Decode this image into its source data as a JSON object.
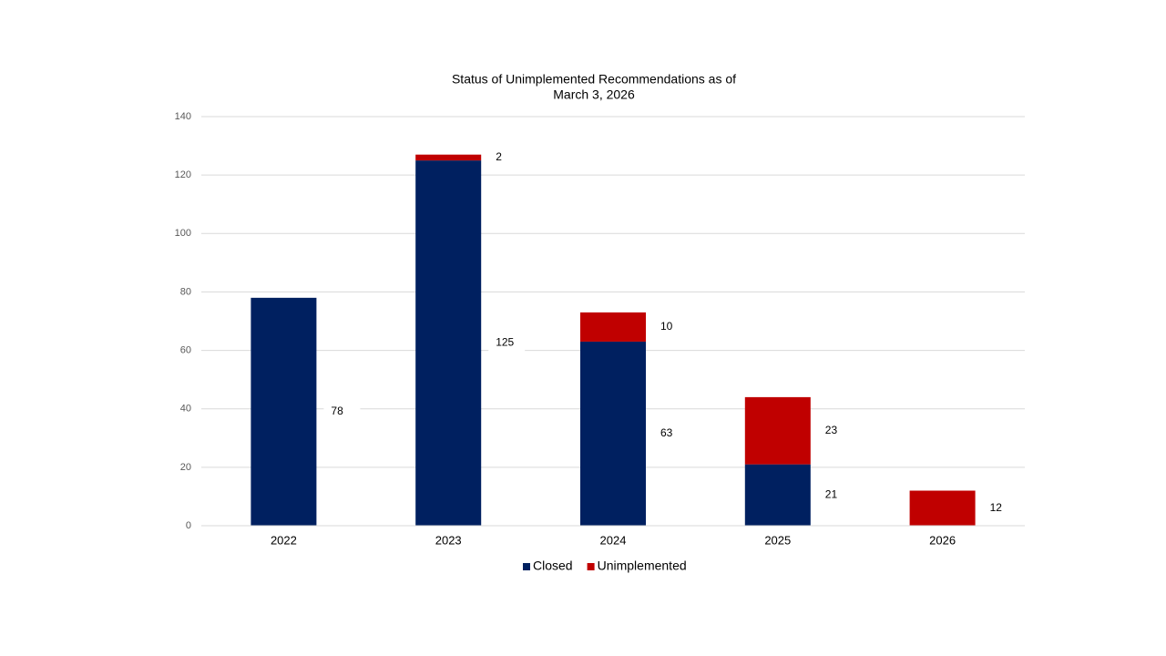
{
  "chart_data": {
    "type": "stacked-bar",
    "title": [
      "Status of Unimplemented Recommendations as of",
      "March 3, 2026"
    ],
    "categories": [
      "2022",
      "2023",
      "2024",
      "2025",
      "2026"
    ],
    "series": [
      {
        "name": "Closed",
        "color": "#002060",
        "values": [
          78,
          125,
          63,
          21,
          null
        ]
      },
      {
        "name": "Unimplemented",
        "color": "#c00000",
        "values": [
          null,
          2,
          10,
          23,
          12
        ]
      }
    ],
    "ylim": [
      0,
      140
    ],
    "yticks": [
      0,
      20,
      40,
      60,
      80,
      100,
      120,
      140
    ],
    "grid": true,
    "legend": "bottom"
  }
}
